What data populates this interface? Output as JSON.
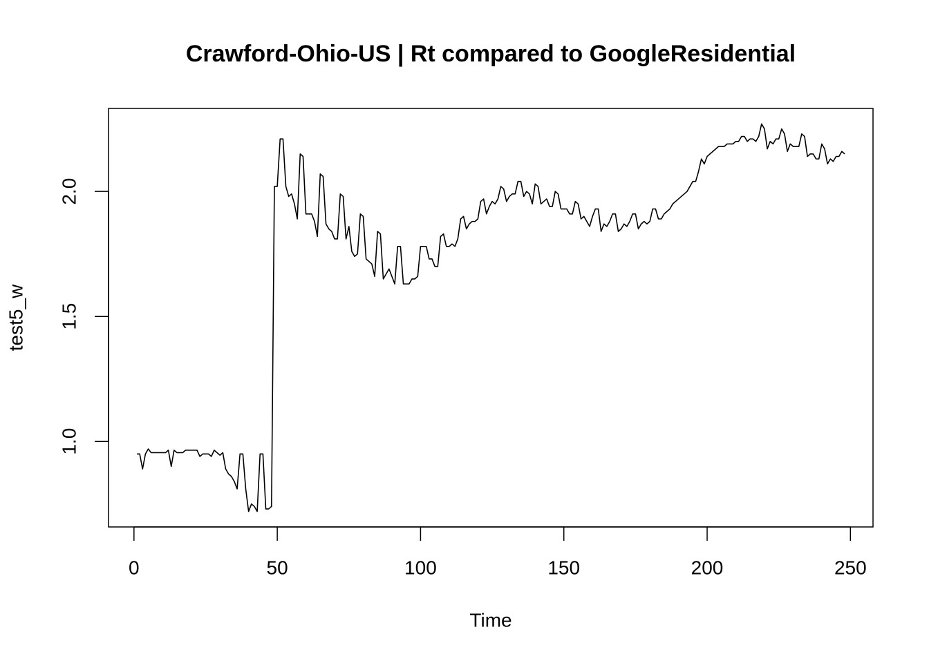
{
  "chart_data": {
    "type": "line",
    "title": "Crawford-Ohio-US | Rt compared to GoogleResidential",
    "x_label": "Time",
    "y_label": "test5_w",
    "color": "#000000",
    "xlim": [
      -8.88,
      257.88
    ],
    "ylim": [
      0.658,
      2.332
    ],
    "xticks": [
      0,
      50,
      100,
      150,
      200,
      250
    ],
    "yticks": [
      {
        "value": 1,
        "label": "1.0"
      },
      1.5,
      {
        "value": 2,
        "label": "2.0"
      }
    ],
    "grid": false,
    "x": [
      1,
      2,
      3,
      4,
      5,
      6,
      7,
      8,
      9,
      10,
      11,
      12,
      13,
      14,
      15,
      16,
      17,
      18,
      19,
      20,
      21,
      22,
      23,
      24,
      25,
      26,
      27,
      28,
      29,
      30,
      31,
      32,
      33,
      34,
      35,
      36,
      37,
      38,
      39,
      40,
      41,
      42,
      43,
      44,
      45,
      46,
      47,
      48,
      49,
      50,
      51,
      52,
      53,
      54,
      55,
      56,
      57,
      58,
      59,
      60,
      61,
      62,
      63,
      64,
      65,
      66,
      67,
      68,
      69,
      70,
      71,
      72,
      73,
      74,
      75,
      76,
      77,
      78,
      79,
      80,
      81,
      82,
      83,
      84,
      85,
      86,
      87,
      88,
      89,
      90,
      91,
      92,
      93,
      94,
      95,
      96,
      97,
      98,
      99,
      100,
      101,
      102,
      103,
      104,
      105,
      106,
      107,
      108,
      109,
      110,
      111,
      112,
      113,
      114,
      115,
      116,
      117,
      118,
      119,
      120,
      121,
      122,
      123,
      124,
      125,
      126,
      127,
      128,
      129,
      130,
      131,
      132,
      133,
      134,
      135,
      136,
      137,
      138,
      139,
      140,
      141,
      142,
      143,
      144,
      145,
      146,
      147,
      148,
      149,
      150,
      151,
      152,
      153,
      154,
      155,
      156,
      157,
      158,
      159,
      160,
      161,
      162,
      163,
      164,
      165,
      166,
      167,
      168,
      169,
      170,
      171,
      172,
      173,
      174,
      175,
      176,
      177,
      178,
      179,
      180,
      181,
      182,
      183,
      184,
      185,
      186,
      187,
      188,
      189,
      190,
      191,
      192,
      193,
      194,
      195,
      196,
      197,
      198,
      199,
      200,
      201,
      202,
      203,
      204,
      205,
      206,
      207,
      208,
      209,
      210,
      211,
      212,
      213,
      214,
      215,
      216,
      217,
      218,
      219,
      220,
      221,
      222,
      223,
      224,
      225,
      226,
      227,
      228,
      229,
      230,
      231,
      232,
      233,
      234,
      235,
      236,
      237,
      238,
      239,
      240,
      241,
      242,
      243,
      244,
      245,
      246,
      247,
      248
    ],
    "values": [
      0.95,
      0.95,
      0.89,
      0.95,
      0.97,
      0.955,
      0.955,
      0.955,
      0.955,
      0.955,
      0.955,
      0.965,
      0.9,
      0.965,
      0.955,
      0.955,
      0.955,
      0.965,
      0.965,
      0.965,
      0.965,
      0.965,
      0.94,
      0.95,
      0.95,
      0.95,
      0.94,
      0.965,
      0.955,
      0.945,
      0.955,
      0.89,
      0.87,
      0.86,
      0.84,
      0.81,
      0.95,
      0.95,
      0.81,
      0.72,
      0.75,
      0.74,
      0.72,
      0.95,
      0.95,
      0.73,
      0.73,
      0.74,
      2.02,
      2.02,
      2.21,
      2.21,
      2.02,
      1.98,
      1.99,
      1.95,
      1.89,
      2.15,
      2.14,
      1.91,
      1.91,
      1.91,
      1.88,
      1.82,
      2.07,
      2.06,
      1.87,
      1.85,
      1.84,
      1.81,
      1.81,
      1.99,
      1.98,
      1.81,
      1.86,
      1.76,
      1.74,
      1.75,
      1.91,
      1.9,
      1.73,
      1.72,
      1.71,
      1.66,
      1.84,
      1.83,
      1.65,
      1.67,
      1.69,
      1.66,
      1.63,
      1.78,
      1.78,
      1.63,
      1.63,
      1.63,
      1.65,
      1.65,
      1.66,
      1.78,
      1.78,
      1.78,
      1.73,
      1.73,
      1.7,
      1.7,
      1.82,
      1.83,
      1.78,
      1.78,
      1.79,
      1.78,
      1.81,
      1.89,
      1.9,
      1.85,
      1.87,
      1.88,
      1.88,
      1.89,
      1.96,
      1.97,
      1.91,
      1.94,
      1.96,
      1.95,
      1.97,
      2.02,
      2.01,
      1.96,
      1.98,
      1.99,
      1.99,
      2.04,
      2.04,
      1.98,
      2.0,
      1.99,
      1.95,
      2.03,
      2.02,
      1.95,
      1.96,
      1.97,
      1.94,
      1.94,
      2.0,
      1.99,
      1.93,
      1.93,
      1.93,
      1.91,
      1.91,
      1.96,
      1.95,
      1.89,
      1.9,
      1.88,
      1.86,
      1.9,
      1.93,
      1.93,
      1.84,
      1.87,
      1.86,
      1.88,
      1.91,
      1.91,
      1.84,
      1.85,
      1.87,
      1.86,
      1.88,
      1.91,
      1.91,
      1.85,
      1.87,
      1.88,
      1.87,
      1.88,
      1.93,
      1.93,
      1.89,
      1.89,
      1.91,
      1.92,
      1.93,
      1.95,
      1.96,
      1.97,
      1.98,
      1.99,
      2.0,
      2.02,
      2.04,
      2.04,
      2.08,
      2.13,
      2.11,
      2.14,
      2.15,
      2.16,
      2.17,
      2.18,
      2.18,
      2.18,
      2.19,
      2.19,
      2.19,
      2.2,
      2.2,
      2.22,
      2.22,
      2.2,
      2.21,
      2.21,
      2.2,
      2.22,
      2.27,
      2.25,
      2.17,
      2.2,
      2.19,
      2.21,
      2.21,
      2.25,
      2.23,
      2.16,
      2.19,
      2.18,
      2.18,
      2.18,
      2.23,
      2.22,
      2.14,
      2.15,
      2.15,
      2.13,
      2.13,
      2.19,
      2.17,
      2.11,
      2.13,
      2.12,
      2.14,
      2.14,
      2.16,
      2.15
    ]
  }
}
